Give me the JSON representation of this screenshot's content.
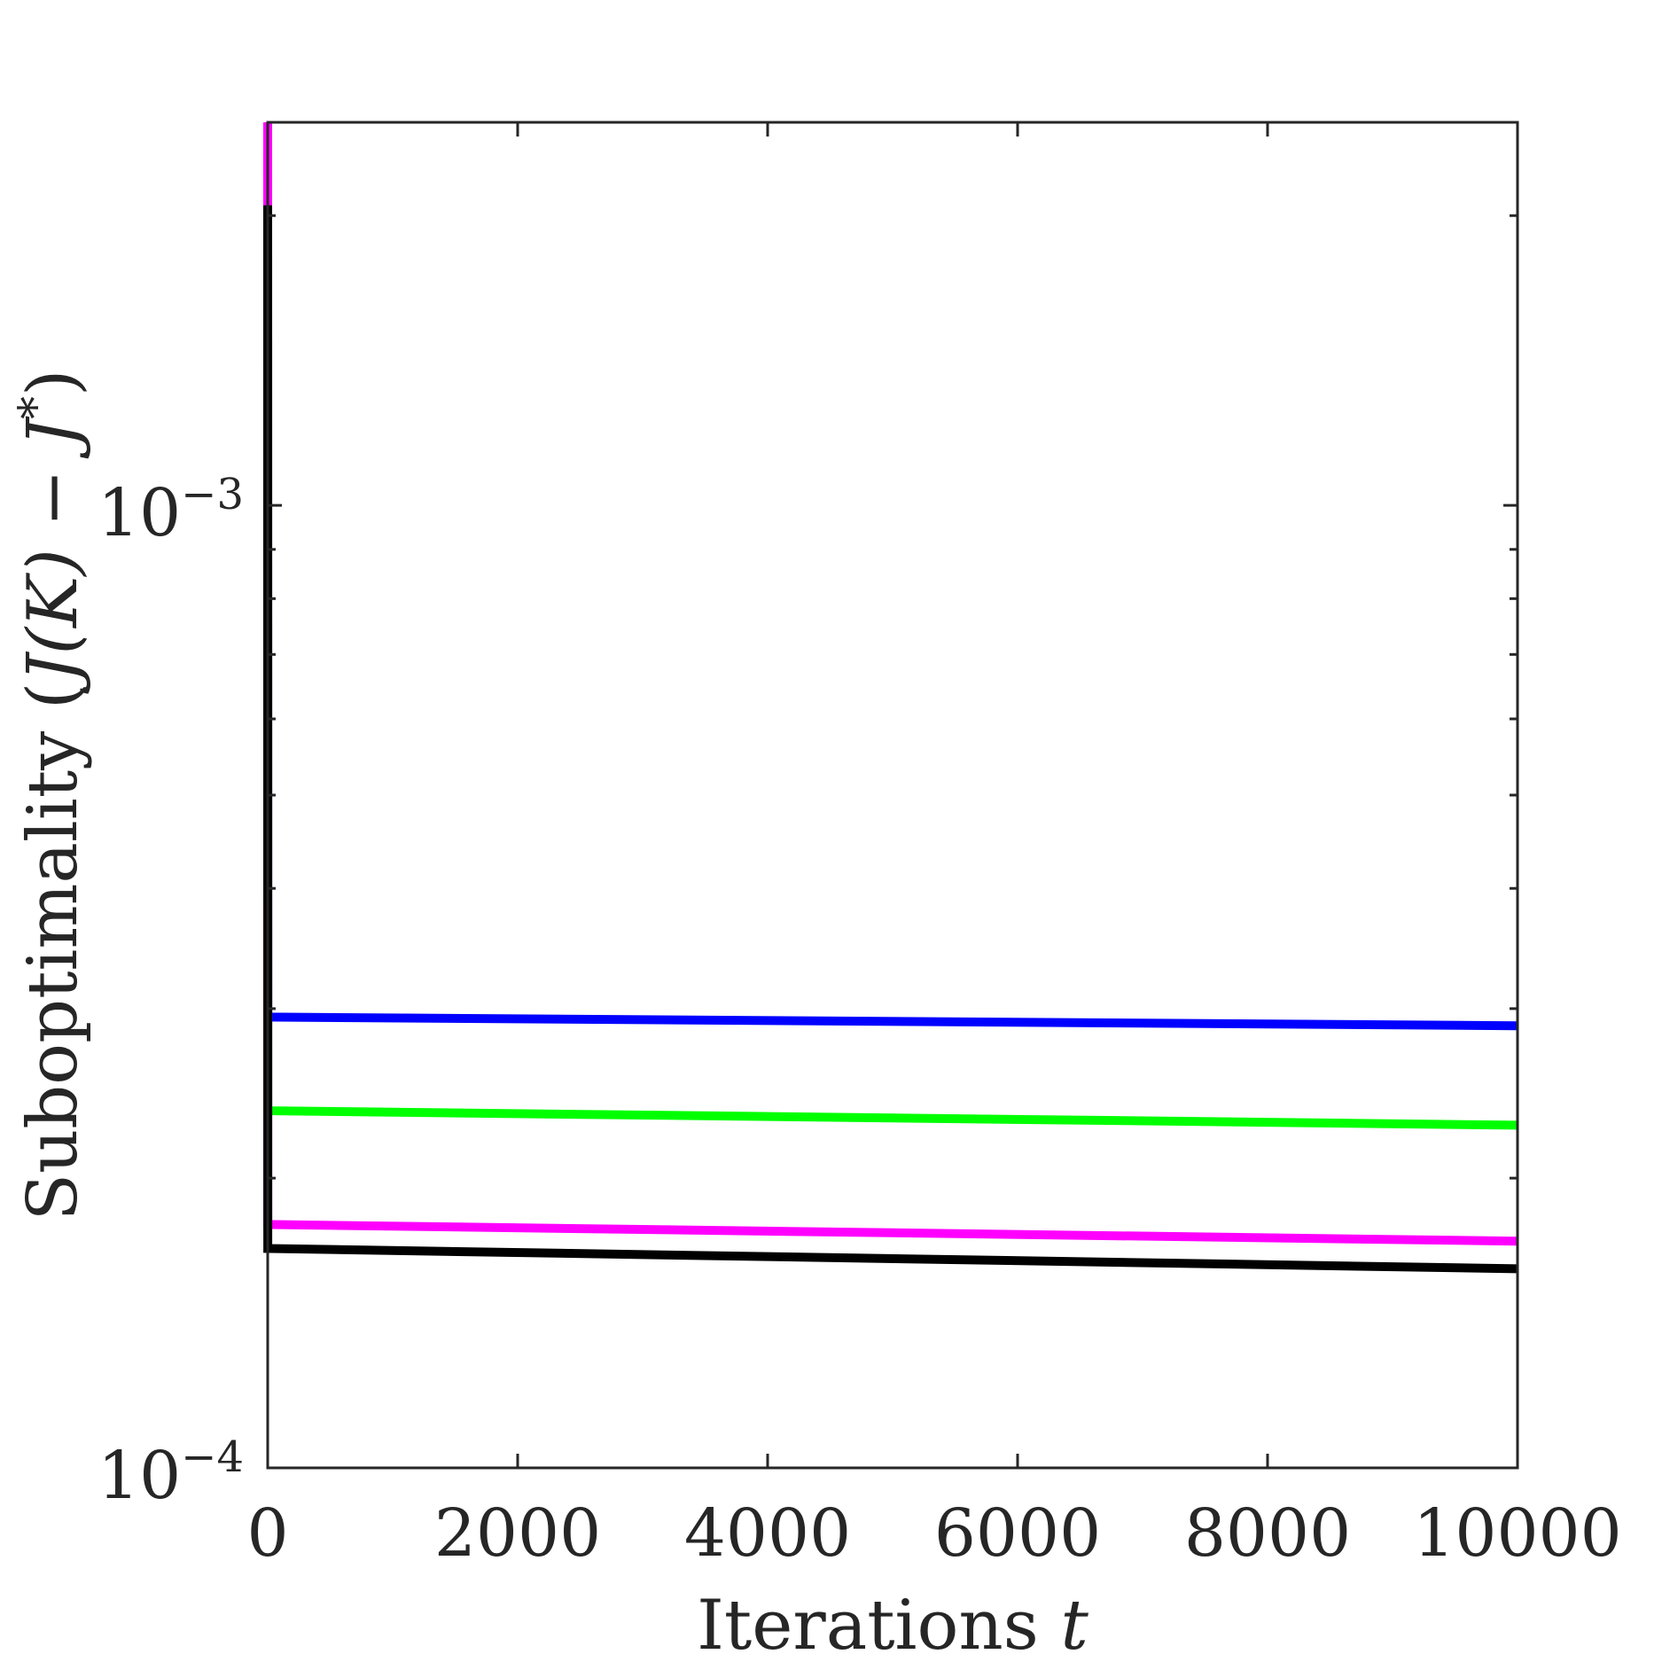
{
  "chart_data": {
    "type": "line",
    "title": "",
    "xlabel": {
      "text": "Iterations ",
      "var": "t"
    },
    "ylabel": {
      "text": "Suboptimality (",
      "expr": "J(K) − J",
      "sup": "*",
      "close": ")"
    },
    "xlim": [
      0,
      10000
    ],
    "ylim": [
      0.0001,
      0.0025
    ],
    "yscale": "log",
    "grid": false,
    "legend": "none",
    "xticks": [
      0,
      2000,
      4000,
      6000,
      8000,
      10000
    ],
    "xtick_labels": [
      "0",
      "2000",
      "4000",
      "6000",
      "8000",
      "10000"
    ],
    "yticks": [
      {
        "value": 0.001,
        "base": "10",
        "exp": "−3"
      },
      {
        "value": 0.0001,
        "base": "10",
        "exp": "−4"
      }
    ],
    "series": [
      {
        "color": "#0000ff",
        "x": [
          0,
          1,
          10000
        ],
        "y": [
          0.0025,
          0.000294,
          0.000288
        ]
      },
      {
        "color": "#00ff00",
        "x": [
          0,
          1,
          10000
        ],
        "y": [
          0.0025,
          0.000235,
          0.000227
        ]
      },
      {
        "color": "#ff00ff",
        "x": [
          0,
          1,
          10000
        ],
        "y": [
          0.0025,
          0.000179,
          0.000172
        ]
      },
      {
        "color": "#000000",
        "x": [
          0,
          1,
          10000
        ],
        "y": [
          0.00205,
          0.000169,
          0.000161
        ]
      }
    ]
  }
}
